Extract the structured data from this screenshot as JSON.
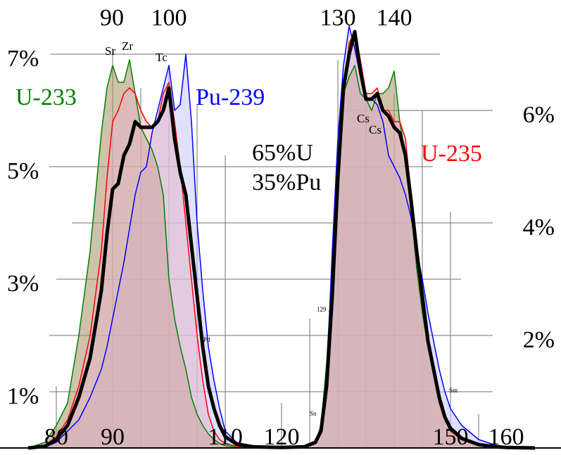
{
  "chart_data": {
    "type": "area",
    "x_ticks_top": [
      "90",
      "100",
      "130",
      "140"
    ],
    "x_ticks_bottom": [
      "80",
      "90",
      "110",
      "120",
      "150",
      "160"
    ],
    "y_ticks_left": [
      "7%",
      "5%",
      "3%",
      "1%"
    ],
    "y_ticks_right": [
      "6%",
      "4%",
      "2%"
    ],
    "blend_label": [
      "65%U",
      "35%Pu"
    ],
    "element_labels": [
      "Sr",
      "Zr",
      "Tc",
      "Pd",
      "Sn",
      "Cs",
      "Cs",
      "Sm"
    ],
    "iodine_label": {
      "mass": "129",
      "symbol": "I"
    },
    "grid": true,
    "series": [
      {
        "name": "U-233",
        "color": "#008000",
        "fill": "#a89066",
        "x": [
          75,
          78,
          80,
          82,
          84,
          86,
          88,
          89,
          90,
          91,
          92,
          93,
          94,
          95,
          96,
          97,
          98,
          99,
          100,
          101,
          102,
          103,
          104,
          105,
          106,
          107,
          108,
          109,
          110,
          112,
          115,
          120,
          124,
          126,
          127,
          128,
          129,
          130,
          131,
          132,
          133,
          134,
          135,
          136,
          137,
          138,
          139,
          140,
          141,
          142,
          143,
          144,
          145,
          146,
          147,
          148,
          149,
          150,
          152,
          155,
          158,
          160,
          165
        ],
        "y": [
          0,
          0.1,
          0.4,
          0.8,
          2.0,
          3.5,
          5.6,
          6.4,
          6.8,
          6.5,
          6.5,
          6.9,
          6.3,
          5.7,
          5.5,
          5.3,
          5.0,
          4.5,
          3.0,
          2.3,
          1.8,
          1.4,
          0.9,
          0.6,
          0.4,
          0.25,
          0.15,
          0.08,
          0.04,
          0.02,
          0.01,
          0.01,
          0.02,
          0.1,
          0.4,
          1.5,
          3.2,
          5.0,
          6.3,
          6.6,
          6.8,
          6.3,
          6.2,
          6.0,
          6.3,
          6.3,
          6.4,
          6.7,
          5.8,
          5.2,
          4.2,
          3.2,
          2.4,
          1.8,
          1.3,
          0.8,
          0.5,
          0.3,
          0.15,
          0.05,
          0.02,
          0.01,
          0
        ]
      },
      {
        "name": "U-235",
        "color": "#ff0000",
        "fill": "#e8b8c8",
        "x": [
          75,
          78,
          80,
          82,
          84,
          86,
          88,
          89,
          90,
          91,
          92,
          93,
          94,
          95,
          96,
          97,
          98,
          99,
          100,
          101,
          102,
          103,
          104,
          105,
          106,
          107,
          108,
          109,
          110,
          112,
          115,
          120,
          124,
          126,
          127,
          128,
          129,
          130,
          131,
          132,
          133,
          134,
          135,
          136,
          137,
          138,
          139,
          140,
          141,
          142,
          143,
          144,
          145,
          146,
          147,
          148,
          149,
          150,
          152,
          155,
          158,
          160,
          165
        ],
        "y": [
          0,
          0.05,
          0.2,
          0.5,
          1.1,
          2.0,
          3.5,
          4.8,
          5.8,
          6.0,
          6.3,
          6.4,
          6.3,
          6.0,
          5.8,
          5.7,
          5.8,
          6.3,
          6.5,
          5.8,
          5.0,
          4.0,
          3.0,
          2.0,
          1.2,
          0.6,
          0.3,
          0.15,
          0.08,
          0.03,
          0.01,
          0.01,
          0.02,
          0.1,
          0.3,
          1.0,
          2.8,
          4.5,
          6.3,
          7.2,
          7.4,
          6.9,
          6.3,
          6.3,
          6.4,
          6.0,
          6.0,
          5.8,
          5.8,
          5.5,
          4.5,
          3.5,
          2.5,
          1.8,
          1.3,
          0.8,
          0.5,
          0.3,
          0.15,
          0.05,
          0.02,
          0.01,
          0
        ]
      },
      {
        "name": "Pu-239",
        "color": "#0000ff",
        "fill": "#c8c8ff",
        "x": [
          75,
          78,
          80,
          82,
          84,
          86,
          88,
          89,
          90,
          91,
          92,
          93,
          94,
          95,
          96,
          97,
          98,
          99,
          100,
          101,
          102,
          103,
          104,
          105,
          106,
          107,
          108,
          109,
          110,
          112,
          115,
          120,
          124,
          126,
          127,
          128,
          129,
          130,
          131,
          132,
          133,
          134,
          135,
          136,
          137,
          138,
          139,
          140,
          141,
          142,
          143,
          144,
          145,
          146,
          147,
          148,
          149,
          150,
          152,
          155,
          158,
          160,
          165
        ],
        "y": [
          0,
          0.02,
          0.1,
          0.3,
          0.5,
          0.9,
          1.4,
          1.8,
          2.3,
          2.8,
          3.3,
          3.9,
          4.5,
          4.9,
          5.0,
          5.6,
          6.0,
          6.4,
          6.8,
          6.0,
          6.1,
          7.0,
          5.8,
          4.0,
          2.8,
          1.8,
          1.2,
          0.7,
          0.3,
          0.1,
          0.03,
          0.01,
          0.02,
          0.1,
          0.3,
          1.2,
          3.5,
          5.5,
          6.8,
          7.5,
          7.1,
          6.6,
          6.2,
          6.2,
          6.1,
          5.8,
          5.2,
          5.0,
          4.8,
          4.5,
          4.1,
          3.5,
          3.0,
          2.4,
          1.9,
          1.4,
          1.0,
          0.7,
          0.4,
          0.15,
          0.05,
          0.02,
          0
        ]
      },
      {
        "name": "",
        "color": "#000000",
        "x": [
          75,
          78,
          80,
          82,
          84,
          86,
          88,
          89,
          90,
          91,
          92,
          93,
          94,
          95,
          96,
          97,
          98,
          99,
          100,
          101,
          102,
          103,
          104,
          105,
          106,
          107,
          108,
          109,
          110,
          112,
          115,
          120,
          124,
          126,
          127,
          128,
          129,
          130,
          131,
          132,
          133,
          134,
          135,
          136,
          137,
          138,
          139,
          140,
          141,
          142,
          143,
          144,
          145,
          146,
          147,
          148,
          149,
          150,
          152,
          155,
          158,
          160,
          165
        ],
        "y": [
          0,
          0.03,
          0.15,
          0.4,
          0.9,
          1.6,
          2.8,
          3.8,
          4.6,
          4.7,
          5.2,
          5.4,
          5.8,
          5.7,
          5.7,
          5.7,
          5.8,
          6.0,
          6.4,
          5.5,
          4.9,
          4.5,
          3.6,
          2.7,
          1.8,
          1.1,
          0.7,
          0.4,
          0.2,
          0.07,
          0.02,
          0.01,
          0.02,
          0.1,
          0.3,
          1.1,
          2.7,
          4.8,
          6.4,
          7.0,
          7.4,
          6.7,
          6.2,
          6.2,
          6.3,
          6.0,
          5.9,
          5.7,
          5.6,
          5.2,
          4.4,
          3.5,
          2.7,
          1.9,
          1.4,
          0.9,
          0.55,
          0.35,
          0.17,
          0.06,
          0.02,
          0.01,
          0
        ]
      }
    ]
  }
}
